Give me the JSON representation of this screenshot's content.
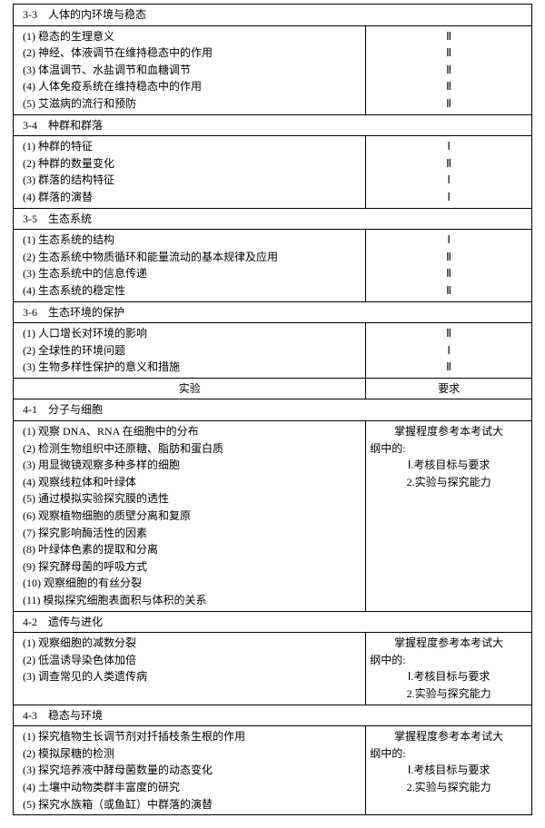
{
  "sections": {
    "s33": {
      "title": "3-3　人体的内环境与稳态",
      "items": [
        "(1) 稳态的生理意义",
        "(2) 神经、体液调节在维持稳态中的作用",
        "(3) 体温调节、水盐调节和血糖调节",
        "(4) 人体免疫系统在维持稳态中的作用",
        "(5) 艾滋病的流行和预防"
      ],
      "levels": [
        "Ⅱ",
        "Ⅱ",
        "Ⅱ",
        "Ⅱ",
        "Ⅱ"
      ]
    },
    "s34": {
      "title": "3-4　种群和群落",
      "items": [
        "(1) 种群的特征",
        "(2) 种群的数量变化",
        "(3) 群落的结构特征",
        "(4) 群落的演替"
      ],
      "levels": [
        "Ⅰ",
        "Ⅱ",
        "Ⅰ",
        "Ⅰ"
      ]
    },
    "s35": {
      "title": "3-5　生态系统",
      "items": [
        "(1) 生态系统的结构",
        "(2) 生态系统中物质循环和能量流动的基本规律及应用",
        "(3) 生态系统中的信息传递",
        "(4) 生态系统的稳定性"
      ],
      "levels": [
        "Ⅰ",
        "Ⅱ",
        "Ⅱ",
        "Ⅱ"
      ]
    },
    "s36": {
      "title": "3-6　生态环境的保护",
      "items": [
        "(1) 人口增长对环境的影响",
        "(2) 全球性的环境问题",
        "(3) 生物多样性保护的意义和措施"
      ],
      "levels": [
        "Ⅱ",
        "Ⅰ",
        "Ⅱ"
      ]
    }
  },
  "header": {
    "left": "实验",
    "right": "要求"
  },
  "sections4": {
    "s41": {
      "title": "4-1　分子与细胞",
      "items": [
        "(1) 观察 DNA、RNA 在细胞中的分布",
        "(2) 检测生物组织中还原糖、脂肪和蛋白质",
        "(3) 用显微镜观察多种多样的细胞",
        "(4) 观察线粒体和叶绿体",
        "(5) 通过模拟实验探究膜的透性",
        "(6) 观察植物细胞的质壁分离和复原",
        "(7) 探究影响酶活性的因素",
        "(8) 叶绿体色素的提取和分离",
        "(9) 探究酵母菌的呼吸方式",
        "(10) 观察细胞的有丝分裂",
        "(11) 模拟探究细胞表面积与体积的关系"
      ]
    },
    "s42": {
      "title": "4-2　遗传与进化",
      "items": [
        "(1) 观察细胞的减数分裂",
        "(2) 低温诱导染色体加倍",
        "(3) 调查常见的人类遗传病"
      ]
    },
    "s43": {
      "title": "4-3　稳态与环境",
      "items": [
        "(1) 探究植物生长调节剂对扦插枝条生根的作用",
        "(2) 模拟尿糖的检测",
        "(3) 探究培养液中酵母菌数量的动态变化",
        "(4) 土壤中动物类群丰富度的研究",
        "(5) 探究水族箱（或鱼缸）中群落的演替"
      ]
    }
  },
  "requirement": {
    "line1": "掌握程度参考本考试大",
    "line2": "纲中的:",
    "line3": "Ⅰ.考核目标与要求",
    "line4": "2.实验与探究能力"
  }
}
